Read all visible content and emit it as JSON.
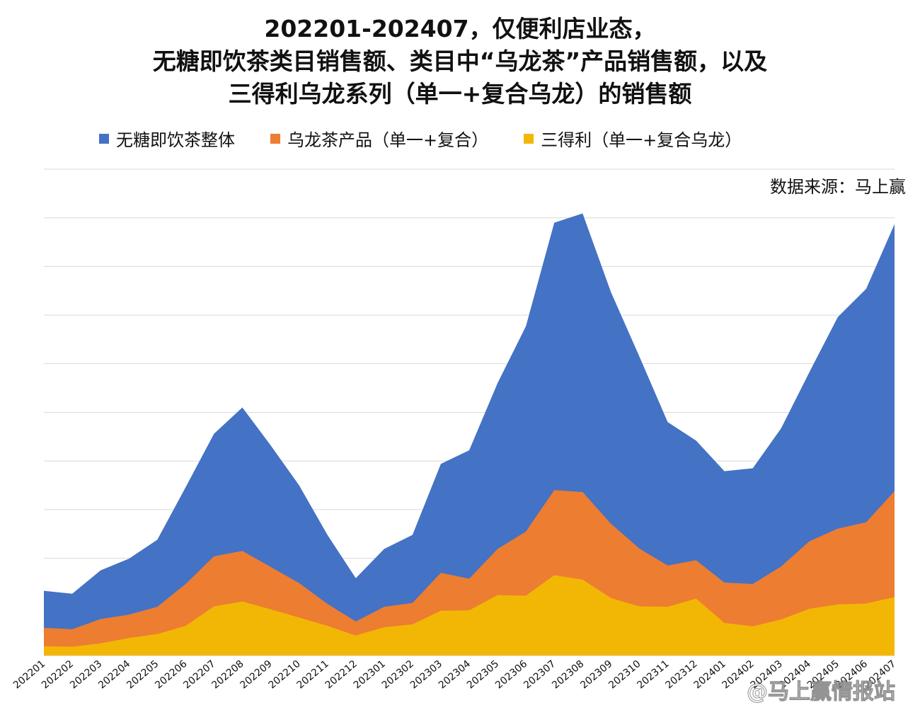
{
  "chart_data": {
    "type": "area",
    "stacked": false,
    "title_lines": [
      "202201-202407，仅便利店业态，",
      "无糖即饮茶类目销售额、类目中“乌龙茶”产品销售额，以及",
      "三得利乌龙系列（单一+复合乌龙）的销售额"
    ],
    "source": "数据来源：马上赢",
    "watermark": "@马上赢情报站",
    "legend_position": "top",
    "grid": true,
    "y_axis_labels": false,
    "ylim": [
      0,
      100
    ],
    "categories": [
      "202201",
      "202202",
      "202203",
      "202204",
      "202205",
      "202206",
      "202207",
      "202208",
      "202209",
      "202210",
      "202211",
      "202212",
      "202301",
      "202302",
      "202303",
      "202304",
      "202305",
      "202306",
      "202307",
      "202308",
      "202309",
      "202310",
      "202311",
      "202312",
      "202401",
      "202402",
      "202403",
      "202404",
      "202405",
      "202406",
      "202407"
    ],
    "series": [
      {
        "name": "无糖即饮茶整体",
        "color": "#4472C4",
        "values": [
          13.3,
          12.7,
          17.5,
          19.9,
          23.8,
          34.6,
          45.6,
          51.0,
          43.2,
          35.0,
          24.8,
          15.9,
          21.9,
          24.8,
          39.4,
          42.2,
          56.0,
          67.7,
          89.0,
          90.9,
          74.7,
          61.5,
          48.0,
          44.2,
          37.9,
          38.5,
          46.7,
          58.3,
          69.6,
          75.4,
          88.7
        ]
      },
      {
        "name": "乌龙茶产品（单一+复合）",
        "color": "#ED7D31",
        "values": [
          5.7,
          5.4,
          7.5,
          8.4,
          10.0,
          14.7,
          20.4,
          21.5,
          18.2,
          14.9,
          10.6,
          7.0,
          10.0,
          10.8,
          17.0,
          15.8,
          21.9,
          25.5,
          34.0,
          33.6,
          27.1,
          22.0,
          18.5,
          19.6,
          15.0,
          14.7,
          18.3,
          23.5,
          26.1,
          27.4,
          33.8
        ]
      },
      {
        "name": "三得利（单一+复合乌龙）",
        "color": "#F2B705",
        "values": [
          1.9,
          1.8,
          2.5,
          3.6,
          4.4,
          6.1,
          10.1,
          11.1,
          9.5,
          7.8,
          6.1,
          4.1,
          5.8,
          6.4,
          9.2,
          9.3,
          12.4,
          12.3,
          16.5,
          15.6,
          11.8,
          10.1,
          10.0,
          11.7,
          6.7,
          6.0,
          7.4,
          9.6,
          10.5,
          10.7,
          12.0
        ]
      }
    ]
  }
}
